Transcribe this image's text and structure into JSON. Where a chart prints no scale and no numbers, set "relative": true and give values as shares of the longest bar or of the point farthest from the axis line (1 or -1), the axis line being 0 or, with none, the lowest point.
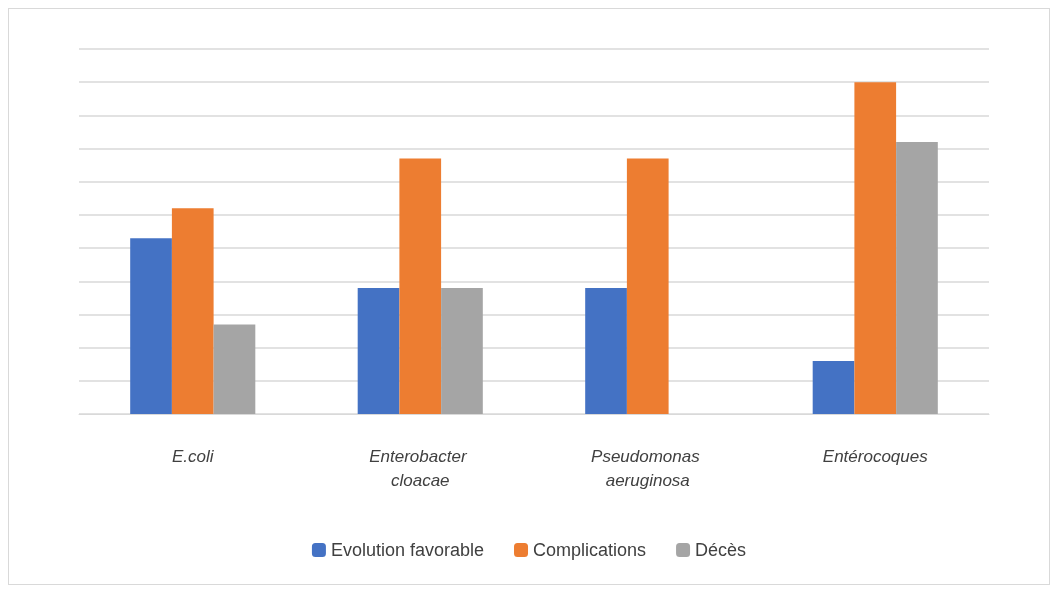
{
  "chart_data": {
    "type": "bar",
    "relative": true,
    "categories": [
      "E.coli",
      "Enterobacter cloacae",
      "Pseudomonas aeruginosa",
      "Entérocoques"
    ],
    "series": [
      {
        "name": "Evolution favorable",
        "color": "#4472c4",
        "values": [
          0.53,
          0.38,
          0.38,
          0.16
        ]
      },
      {
        "name": "Complications",
        "color": "#ed7d31",
        "values": [
          0.62,
          0.77,
          0.77,
          1
        ]
      },
      {
        "name": "Décès",
        "color": "#a5a5a5",
        "values": [
          0.27,
          0.38,
          0,
          0.82
        ]
      }
    ],
    "grid": true,
    "legend": "bottom"
  }
}
